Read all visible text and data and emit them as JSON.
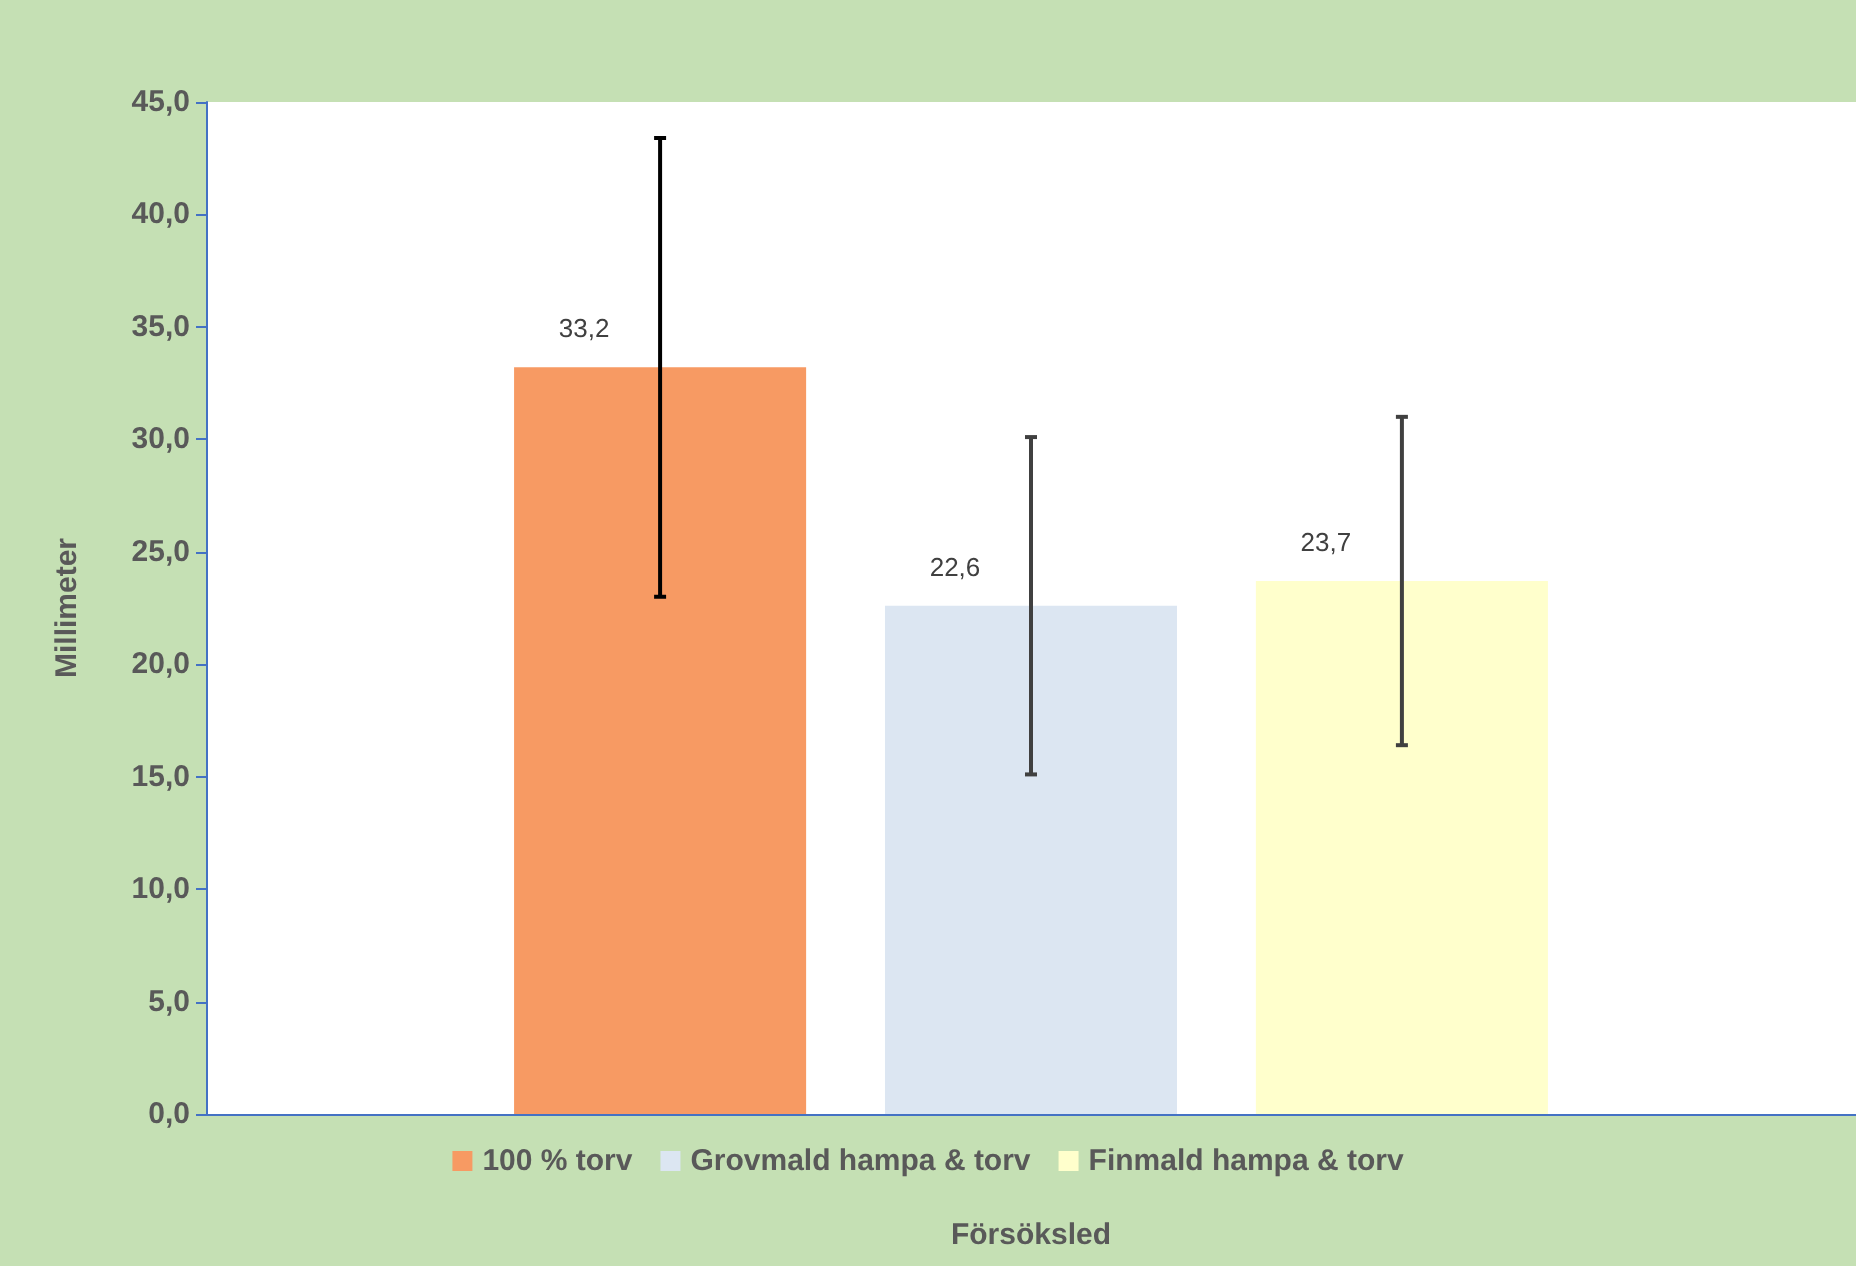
{
  "chart_data": {
    "type": "bar",
    "xlabel": "Försöksled",
    "ylabel": "Millimeter",
    "categories": [
      null
    ],
    "series": [
      {
        "name": "100 % torv",
        "color": "#f79a63",
        "values": [
          33.2
        ],
        "errors": [
          10.2
        ],
        "value_labels": [
          "33,2"
        ]
      },
      {
        "name": "Grovmald hampa & torv",
        "color": "#dce6f2",
        "values": [
          22.6
        ],
        "errors": [
          7.5
        ],
        "value_labels": [
          "22,6"
        ]
      },
      {
        "name": "Finmald hampa & torv",
        "color": "#ffffcc",
        "values": [
          23.7
        ],
        "errors": [
          7.3
        ],
        "value_labels": [
          "23,7"
        ]
      }
    ],
    "ylim": [
      0,
      45
    ],
    "yticks": [
      {
        "value": 0,
        "label": "0,0"
      },
      {
        "value": 5,
        "label": "5,0"
      },
      {
        "value": 10,
        "label": "10,0"
      },
      {
        "value": 15,
        "label": "15,0"
      },
      {
        "value": 20,
        "label": "20,0"
      },
      {
        "value": 25,
        "label": "25,0"
      },
      {
        "value": 30,
        "label": "30,0"
      },
      {
        "value": 35,
        "label": "35,0"
      },
      {
        "value": 40,
        "label": "40,0"
      },
      {
        "value": 45,
        "label": "45,0"
      }
    ],
    "grid": false,
    "legend": "bottom"
  }
}
